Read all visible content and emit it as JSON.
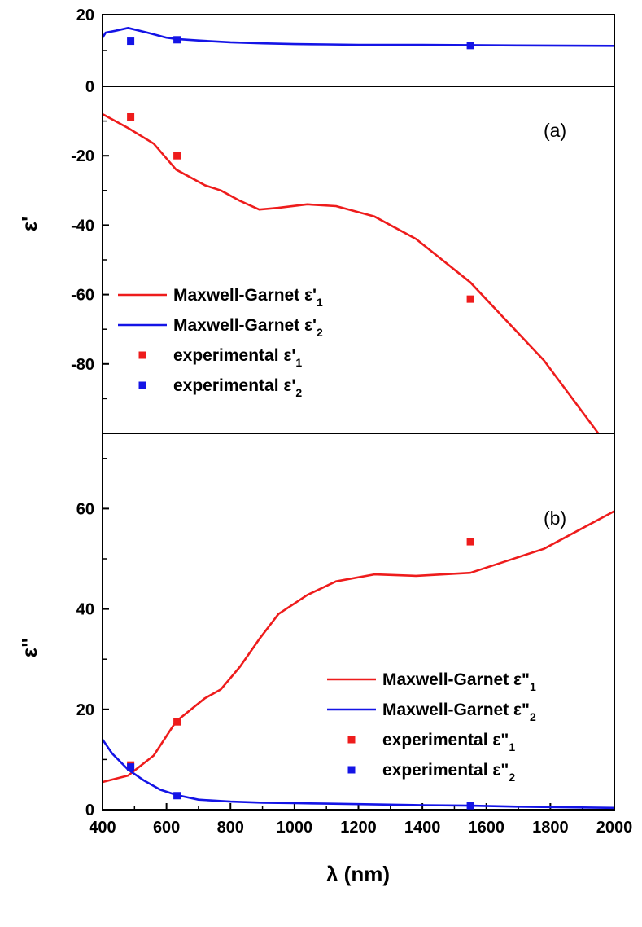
{
  "colors": {
    "red": "#ee1c1c",
    "blue": "#1414e6"
  },
  "chart_data": [
    {
      "type": "line",
      "panel_label": "(a)",
      "ylabel": "ε'",
      "xlim": [
        400,
        2000
      ],
      "ylim": [
        -100,
        20
      ],
      "axis_break_at": 0,
      "upper_ylim": [
        0,
        20
      ],
      "lower_ylim": [
        -100,
        0
      ],
      "yticks_upper": [
        0,
        20
      ],
      "yticks_lower": [
        -20,
        -40,
        -60,
        -80
      ],
      "yticks_upper_labels": [
        "0",
        "20"
      ],
      "yticks_lower_labels": [
        "-20",
        "-40",
        "-60",
        "-80"
      ],
      "legend_position": "bottom-left",
      "series": [
        {
          "name": "Maxwell-Garnet ε'1",
          "label_main": "Maxwell-Garnet ε'",
          "label_sub": "1",
          "kind": "line",
          "color": "#ee1c1c",
          "x": [
            400,
            480,
            560,
            630,
            720,
            770,
            830,
            890,
            950,
            1040,
            1130,
            1250,
            1380,
            1550,
            1780,
            1950
          ],
          "y": [
            -8,
            -12,
            -16.5,
            -24,
            -28.5,
            -30,
            -33,
            -35.5,
            -35,
            -34,
            -34.5,
            -37.5,
            -44,
            -56.5,
            -79,
            -100
          ]
        },
        {
          "name": "Maxwell-Garnet ε'2",
          "label_main": "Maxwell-Garnet ε'",
          "label_sub": "2",
          "kind": "line",
          "color": "#1414e6",
          "x": [
            400,
            410,
            440,
            480,
            540,
            600,
            633,
            700,
            800,
            900,
            1000,
            1100,
            1200,
            1400,
            1550,
            1700,
            2000
          ],
          "y": [
            13.6,
            15,
            15.5,
            16.3,
            15,
            13.6,
            13.2,
            12.8,
            12.3,
            12,
            11.8,
            11.7,
            11.6,
            11.6,
            11.5,
            11.4,
            11.3
          ]
        },
        {
          "name": "experimental ε'1",
          "label_main": "experimental ε'",
          "label_sub": "1",
          "kind": "scatter",
          "color": "#ee1c1c",
          "x": [
            488,
            633,
            1550
          ],
          "y": [
            -8.8,
            -20,
            -61.3
          ]
        },
        {
          "name": "experimental ε'2",
          "label_main": "experimental ε'",
          "label_sub": "2",
          "kind": "scatter",
          "color": "#1414e6",
          "x": [
            488,
            633,
            1550
          ],
          "y": [
            12.6,
            13,
            11.4
          ]
        }
      ]
    },
    {
      "type": "line",
      "panel_label": "(b)",
      "ylabel": "ε\"",
      "xlabel": "λ (nm)",
      "xlim": [
        400,
        2000
      ],
      "ylim": [
        0,
        75
      ],
      "xticks": [
        400,
        600,
        800,
        1000,
        1200,
        1400,
        1600,
        1800,
        2000
      ],
      "xtick_labels": [
        "400",
        "600",
        "800",
        "1000",
        "1200",
        "1400",
        "1600",
        "1800",
        "2000"
      ],
      "yticks": [
        0,
        20,
        40,
        60
      ],
      "ytick_labels": [
        "0",
        "20",
        "40",
        "60"
      ],
      "legend_position": "bottom-right",
      "series": [
        {
          "name": "Maxwell-Garnet ε\"1",
          "label_main": "Maxwell-Garnet ε\"",
          "label_sub": "1",
          "kind": "line",
          "color": "#ee1c1c",
          "x": [
            400,
            480,
            560,
            630,
            720,
            770,
            830,
            890,
            950,
            1040,
            1130,
            1250,
            1380,
            1550,
            1780,
            2000
          ],
          "y": [
            5.5,
            6.8,
            10.8,
            17.6,
            22.2,
            24,
            28.5,
            34,
            39,
            42.8,
            45.5,
            46.9,
            46.6,
            47.2,
            52,
            59.5
          ]
        },
        {
          "name": "Maxwell-Garnet ε\"2",
          "label_main": "Maxwell-Garnet ε\"",
          "label_sub": "2",
          "kind": "line",
          "color": "#1414e6",
          "x": [
            400,
            430,
            480,
            530,
            580,
            633,
            700,
            800,
            900,
            1000,
            1100,
            1200,
            1400,
            1550,
            1700,
            2000
          ],
          "y": [
            14,
            11.2,
            8,
            5.8,
            4,
            2.9,
            2,
            1.6,
            1.4,
            1.3,
            1.2,
            1.1,
            0.9,
            0.8,
            0.6,
            0.35
          ]
        },
        {
          "name": "experimental ε\"1",
          "label_main": "experimental ε\"",
          "label_sub": "1",
          "kind": "scatter",
          "color": "#ee1c1c",
          "x": [
            488,
            633,
            1550
          ],
          "y": [
            8.9,
            17.5,
            53.4
          ]
        },
        {
          "name": "experimental ε\"2",
          "label_main": "experimental ε\"",
          "label_sub": "2",
          "kind": "scatter",
          "color": "#1414e6",
          "x": [
            488,
            633,
            1550
          ],
          "y": [
            8.5,
            2.8,
            0.8
          ]
        }
      ]
    }
  ]
}
